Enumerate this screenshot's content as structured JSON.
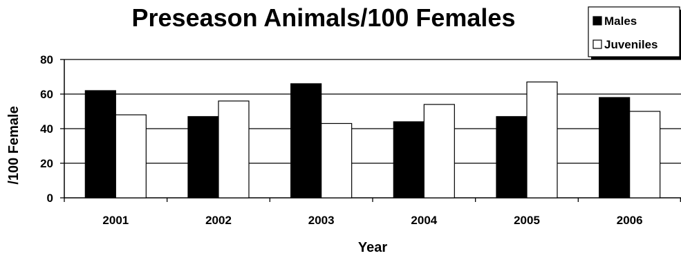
{
  "chart_data": {
    "type": "bar",
    "title": "Preseason Animals/100 Females",
    "xlabel": "Year",
    "ylabel": "/100 Female",
    "categories": [
      "2001",
      "2002",
      "2003",
      "2004",
      "2005",
      "2006"
    ],
    "series": [
      {
        "name": "Males",
        "values": [
          62,
          47,
          66,
          44,
          47,
          58
        ],
        "color": "#000000"
      },
      {
        "name": "Juveniles",
        "values": [
          48,
          56,
          43,
          54,
          67,
          50
        ],
        "color": "#ffffff"
      }
    ],
    "ylim": [
      0,
      80
    ],
    "yticks": [
      0,
      20,
      40,
      60,
      80
    ],
    "grid": true,
    "legend": "top-right"
  }
}
